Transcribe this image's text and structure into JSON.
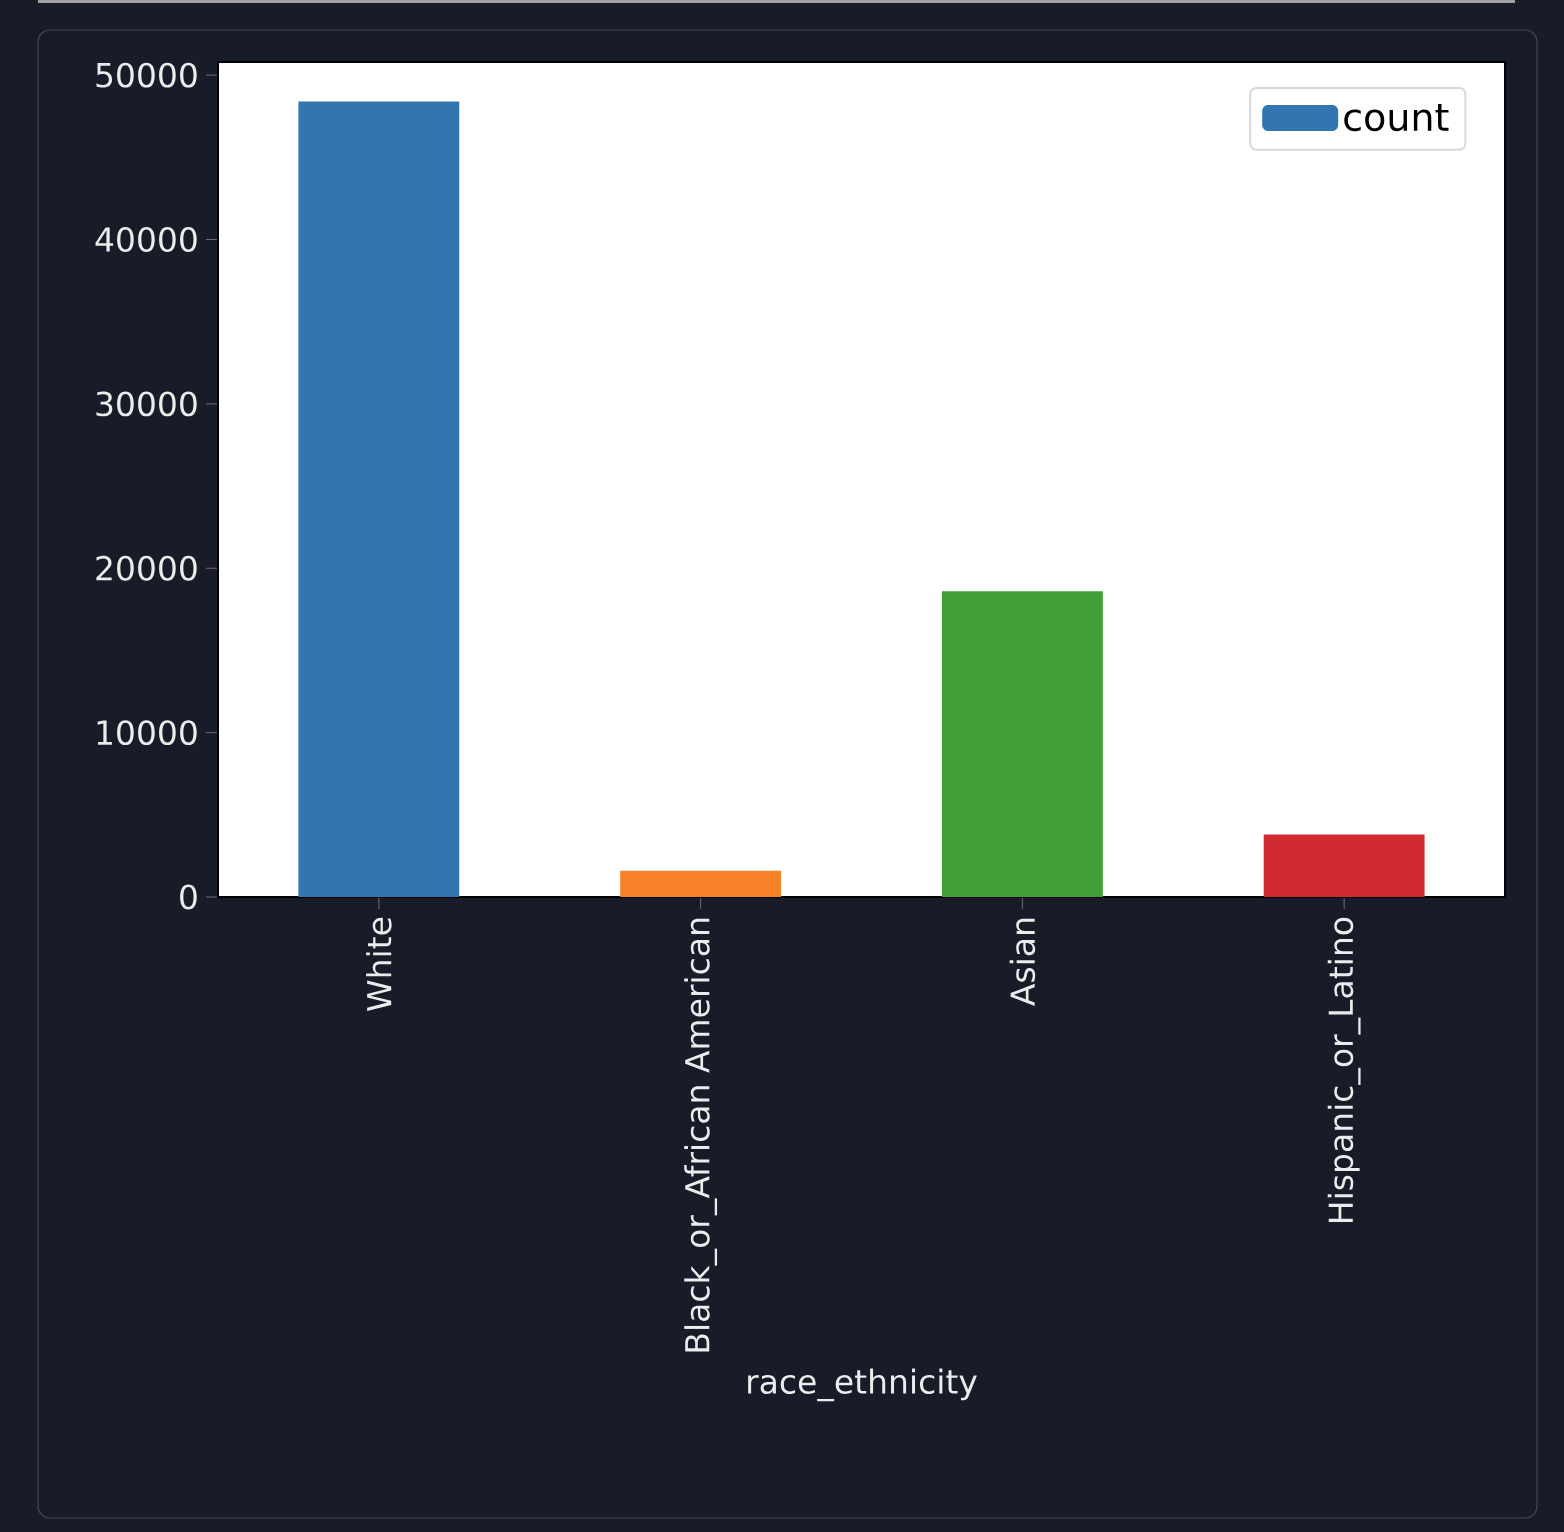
{
  "chart_data": {
    "type": "bar",
    "xlabel": "race_ethnicity",
    "categories": [
      "White",
      "Black_or_African American",
      "Asian",
      "Hispanic_or_Latino"
    ],
    "series": [
      {
        "name": "count",
        "colors": [
          "#3176b1",
          "#f7822a",
          "#41a038",
          "#cf2a31"
        ],
        "values": [
          48400,
          1600,
          18600,
          3800
        ]
      }
    ],
    "ylim": [
      0,
      50800
    ],
    "yticks": [
      0,
      10000,
      20000,
      30000,
      40000,
      50000
    ],
    "legend": "top right"
  }
}
